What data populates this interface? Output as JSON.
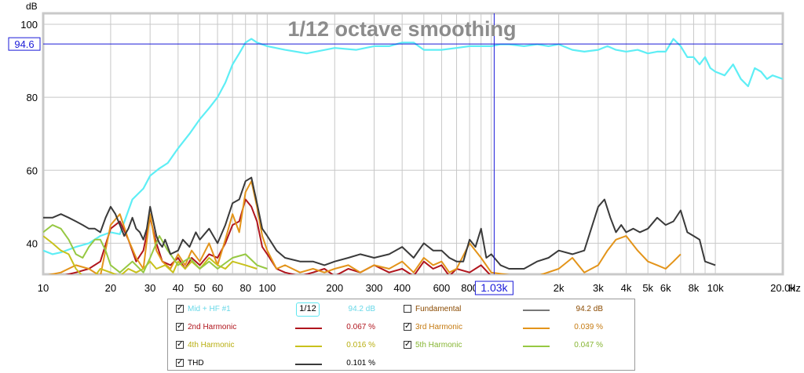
{
  "chart_data": {
    "type": "line",
    "title": "1/12 octave smoothing",
    "ylabel": "dB",
    "xlabel": "Hz",
    "x_scale": "log",
    "xlim": [
      10,
      20000
    ],
    "ylim": [
      31.5,
      103
    ],
    "grid": true,
    "x_ticks": [
      {
        "v": 10,
        "t": "10"
      },
      {
        "v": 20,
        "t": "20"
      },
      {
        "v": 30,
        "t": "30"
      },
      {
        "v": 40,
        "t": "40"
      },
      {
        "v": 50,
        "t": "50"
      },
      {
        "v": 60,
        "t": "60"
      },
      {
        "v": 80,
        "t": "80"
      },
      {
        "v": 100,
        "t": "100"
      },
      {
        "v": 200,
        "t": "200"
      },
      {
        "v": 300,
        "t": "300"
      },
      {
        "v": 400,
        "t": "400"
      },
      {
        "v": 600,
        "t": "600"
      },
      {
        "v": 800,
        "t": "800"
      },
      {
        "v": 2000,
        "t": "2k"
      },
      {
        "v": 3000,
        "t": "3k"
      },
      {
        "v": 4000,
        "t": "4k"
      },
      {
        "v": 5000,
        "t": "5k"
      },
      {
        "v": 6000,
        "t": "6k"
      },
      {
        "v": 8000,
        "t": "8k"
      },
      {
        "v": 10000,
        "t": "10k"
      },
      {
        "v": 20000,
        "t": "20.0k"
      }
    ],
    "y_ticks": [
      {
        "v": 40,
        "t": "40"
      },
      {
        "v": 60,
        "t": "60"
      },
      {
        "v": 80,
        "t": "80"
      },
      {
        "v": 100,
        "t": "100"
      }
    ],
    "cursor": {
      "x_label": "1.03k",
      "x": 1030,
      "y_label": "94.6",
      "y": 94.6
    },
    "series": [
      {
        "name": "Mid + HF #1",
        "color": "#5eeef5",
        "x": [
          10,
          11,
          12,
          14,
          16,
          18,
          20,
          22,
          25,
          28,
          30,
          33,
          36,
          40,
          45,
          50,
          55,
          60,
          65,
          70,
          75,
          80,
          85,
          90,
          100,
          120,
          150,
          200,
          250,
          300,
          350,
          400,
          450,
          500,
          550,
          600,
          700,
          800,
          900,
          1000,
          1100,
          1200,
          1400,
          1600,
          1800,
          2000,
          2300,
          2600,
          3000,
          3300,
          3600,
          4000,
          4500,
          5000,
          5500,
          6000,
          6500,
          7000,
          7500,
          8000,
          8500,
          9000,
          9500,
          10000,
          11000,
          12000,
          13000,
          14000,
          15000,
          16000,
          17000,
          18000,
          20000
        ],
        "y": [
          38,
          37,
          37.5,
          39,
          40,
          42,
          43,
          42.5,
          52,
          55,
          58.5,
          60.5,
          62,
          66,
          70,
          74,
          77,
          80,
          84,
          89,
          92,
          95,
          96,
          95,
          94,
          93,
          92,
          93.5,
          93,
          94,
          94,
          95,
          95,
          93,
          93,
          93,
          93.5,
          94,
          94,
          94,
          94.5,
          94.5,
          94,
          94.5,
          94,
          94.5,
          93,
          92.5,
          93,
          94,
          93,
          92.5,
          93,
          92,
          92.5,
          92.5,
          96,
          94,
          91,
          91,
          89,
          91,
          88,
          87,
          86,
          89,
          85,
          83,
          88,
          87,
          85,
          86,
          85
        ]
      },
      {
        "name": "Fundamental",
        "color": "#777777",
        "visible": false,
        "x": [],
        "y": []
      },
      {
        "name": "2nd Harmonic",
        "color": "#b0151d",
        "x": [
          10,
          12,
          14,
          16,
          18,
          20,
          22,
          24,
          26,
          28,
          30,
          32,
          34,
          37,
          40,
          43,
          46,
          50,
          55,
          60,
          65,
          70,
          75,
          80,
          85,
          90,
          95,
          100,
          110,
          120,
          140,
          160,
          180,
          200,
          230,
          260,
          300,
          350,
          400,
          450,
          500,
          550,
          600,
          650,
          700,
          800,
          900,
          1000
        ],
        "y": [
          31,
          31,
          32,
          33,
          35,
          44,
          46,
          41,
          35,
          38,
          47,
          40,
          35,
          34,
          36,
          33,
          36,
          34,
          37,
          36,
          40,
          45,
          46,
          52,
          50,
          46,
          39,
          37,
          33,
          32,
          31,
          32,
          33,
          31,
          33,
          32,
          34,
          32,
          33,
          31,
          35,
          33,
          34,
          31,
          33,
          32,
          34,
          31
        ]
      },
      {
        "name": "3rd Harmonic",
        "color": "#e3941a",
        "x": [
          10,
          12,
          14,
          16,
          18,
          20,
          22,
          24,
          26,
          28,
          30,
          32,
          34,
          37,
          40,
          43,
          46,
          50,
          55,
          60,
          65,
          70,
          75,
          80,
          85,
          90,
          95,
          100,
          110,
          120,
          140,
          160,
          180,
          200,
          230,
          260,
          300,
          350,
          400,
          450,
          500,
          550,
          600,
          650,
          700,
          800,
          900,
          1000,
          1300,
          1600,
          2000,
          2300,
          2600,
          3000,
          3300,
          3600,
          4000,
          4500,
          5000,
          5500,
          6000,
          6500,
          7000
        ],
        "y": [
          31,
          32,
          34,
          33,
          31,
          45,
          48,
          41,
          36,
          33,
          48,
          38,
          35,
          33,
          37,
          34,
          38,
          35,
          40,
          34,
          41,
          48,
          43,
          54,
          57,
          50,
          42,
          38,
          33,
          34,
          32,
          33,
          32,
          33,
          34,
          32,
          34,
          33,
          35,
          32,
          36,
          34,
          35,
          32,
          33,
          40,
          36,
          32,
          31,
          31,
          33,
          36,
          32,
          34,
          38,
          41,
          42,
          38,
          35,
          34,
          33,
          35,
          37
        ]
      },
      {
        "name": "4th Harmonic",
        "color": "#c8c11c",
        "x": [
          10,
          11,
          12,
          13,
          14,
          15,
          16,
          17,
          18,
          20,
          22,
          24,
          26,
          28,
          30,
          32,
          35,
          38,
          40,
          43,
          46,
          50,
          55,
          60,
          65,
          70,
          80,
          90
        ],
        "y": [
          42,
          40,
          38,
          37,
          33,
          31,
          30,
          31,
          33,
          32,
          31,
          33,
          32,
          33,
          35,
          33,
          34,
          32,
          35,
          33,
          35,
          33,
          36,
          34,
          33,
          35,
          34,
          33
        ]
      },
      {
        "name": "5th Harmonic",
        "color": "#96c842",
        "x": [
          10,
          11,
          12,
          13,
          14,
          15,
          16,
          17,
          18,
          19,
          20,
          22,
          25,
          28,
          30,
          33,
          36,
          40,
          45,
          50,
          55,
          60,
          70,
          80,
          90,
          100
        ],
        "y": [
          43,
          45,
          44,
          41,
          37,
          36,
          39,
          41,
          41,
          38,
          34,
          32,
          35,
          32,
          36,
          42,
          38,
          34,
          36,
          33,
          35,
          33,
          36,
          37,
          34,
          33
        ]
      },
      {
        "name": "THD",
        "color": "#3a3a3a",
        "x": [
          10,
          11,
          12,
          13,
          14,
          15,
          16,
          17,
          18,
          19,
          20,
          21,
          22,
          23,
          24,
          25,
          26,
          27,
          28,
          29,
          30,
          31,
          32,
          33,
          34,
          35,
          37,
          40,
          42,
          45,
          48,
          50,
          55,
          60,
          65,
          70,
          75,
          80,
          85,
          90,
          95,
          100,
          110,
          120,
          140,
          160,
          180,
          200,
          230,
          260,
          300,
          350,
          400,
          450,
          500,
          550,
          600,
          650,
          700,
          750,
          800,
          850,
          900,
          950,
          1000,
          1100,
          1200,
          1400,
          1600,
          1800,
          2000,
          2300,
          2600,
          3000,
          3200,
          3400,
          3600,
          3800,
          4000,
          4300,
          4600,
          5000,
          5500,
          6000,
          6500,
          7000,
          7500,
          8000,
          8500,
          9000,
          10000
        ],
        "y": [
          47,
          47,
          48,
          47,
          46,
          45,
          44,
          44,
          43,
          47,
          50,
          48,
          45,
          42,
          44,
          47,
          44,
          43,
          41,
          44,
          50,
          46,
          42,
          40,
          39,
          41,
          37,
          38,
          41,
          39,
          43,
          41,
          44,
          40,
          45,
          51,
          52,
          57,
          58,
          51,
          44,
          42,
          38,
          36,
          35,
          35,
          34,
          35,
          36,
          37,
          36,
          37,
          39,
          36,
          40,
          38,
          38,
          36,
          35,
          35,
          41,
          39,
          44,
          36,
          37,
          34,
          33,
          33,
          35,
          36,
          38,
          37,
          38,
          50,
          52,
          47,
          43,
          45,
          43,
          44,
          43,
          44,
          47,
          45,
          46,
          49,
          43,
          42,
          41,
          35,
          34
        ]
      }
    ]
  },
  "legend": {
    "rows": [
      [
        {
          "label": "Mid + HF #1",
          "value": "94.2 dB",
          "checked": true,
          "color": "#5eeef5",
          "label_color": "#69d8e8",
          "smoothing": "1/12"
        },
        {
          "label": "Fundamental",
          "value": "94.2 dB",
          "checked": false,
          "color": "#777777",
          "label_color": "#8a4a00"
        }
      ],
      [
        {
          "label": "2nd Harmonic",
          "value": "0.067 %",
          "checked": true,
          "color": "#b0151d",
          "label_color": "#b0151d"
        },
        {
          "label": "3rd Harmonic",
          "value": "0.039 %",
          "checked": true,
          "color": "#e3941a",
          "label_color": "#c57a10"
        }
      ],
      [
        {
          "label": "4th Harmonic",
          "value": "0.016 %",
          "checked": true,
          "color": "#c8c11c",
          "label_color": "#b8ae10"
        },
        {
          "label": "5th Harmonic",
          "value": "0.047 %",
          "checked": true,
          "color": "#96c842",
          "label_color": "#86b532"
        }
      ],
      [
        {
          "label": "THD",
          "value": "0.101 %",
          "checked": true,
          "color": "#3a3a3a",
          "label_color": "#000000"
        }
      ]
    ]
  }
}
